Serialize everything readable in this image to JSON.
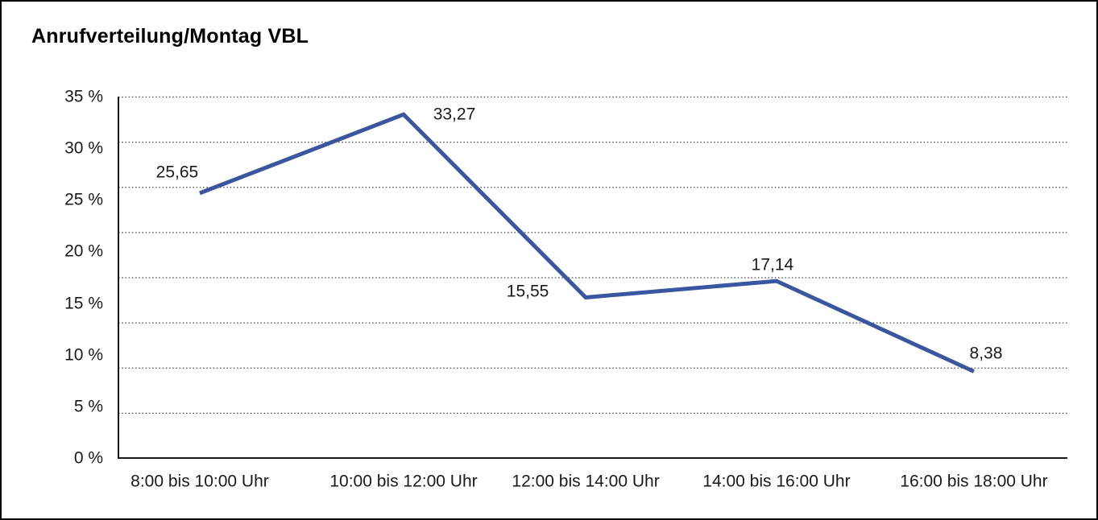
{
  "window": {
    "background_color": "#ffffff",
    "border_color": "#000000"
  },
  "chart_data": {
    "type": "line",
    "title": "Anrufverteilung/Montag VBL",
    "categories": [
      "8:00 bis 10:00 Uhr",
      "10:00 bis 12:00 Uhr",
      "12:00 bis 14:00 Uhr",
      "14:00 bis 16:00 Uhr",
      "16:00 bis 18:00 Uhr"
    ],
    "values": [
      25.65,
      33.27,
      15.55,
      17.14,
      8.38
    ],
    "point_labels": [
      "25,65",
      "33,27",
      "15,55",
      "17,14",
      "8,38"
    ],
    "y_tick_labels": [
      "35 %",
      "30 %",
      "25 %",
      "20 %",
      "15 %",
      "10 %",
      "5 %",
      "0 %"
    ],
    "ylim": [
      0,
      35
    ],
    "y_tick_step": 5,
    "xlabel": "",
    "ylabel": "",
    "legend": "none",
    "grid": "dotted-horizontal",
    "gridline_count": 8,
    "line_color": "#3A56A0",
    "axis_color": "#1a1a1a",
    "gridline_color": "#4d4d4d",
    "text_color": "#1a1a1a"
  }
}
